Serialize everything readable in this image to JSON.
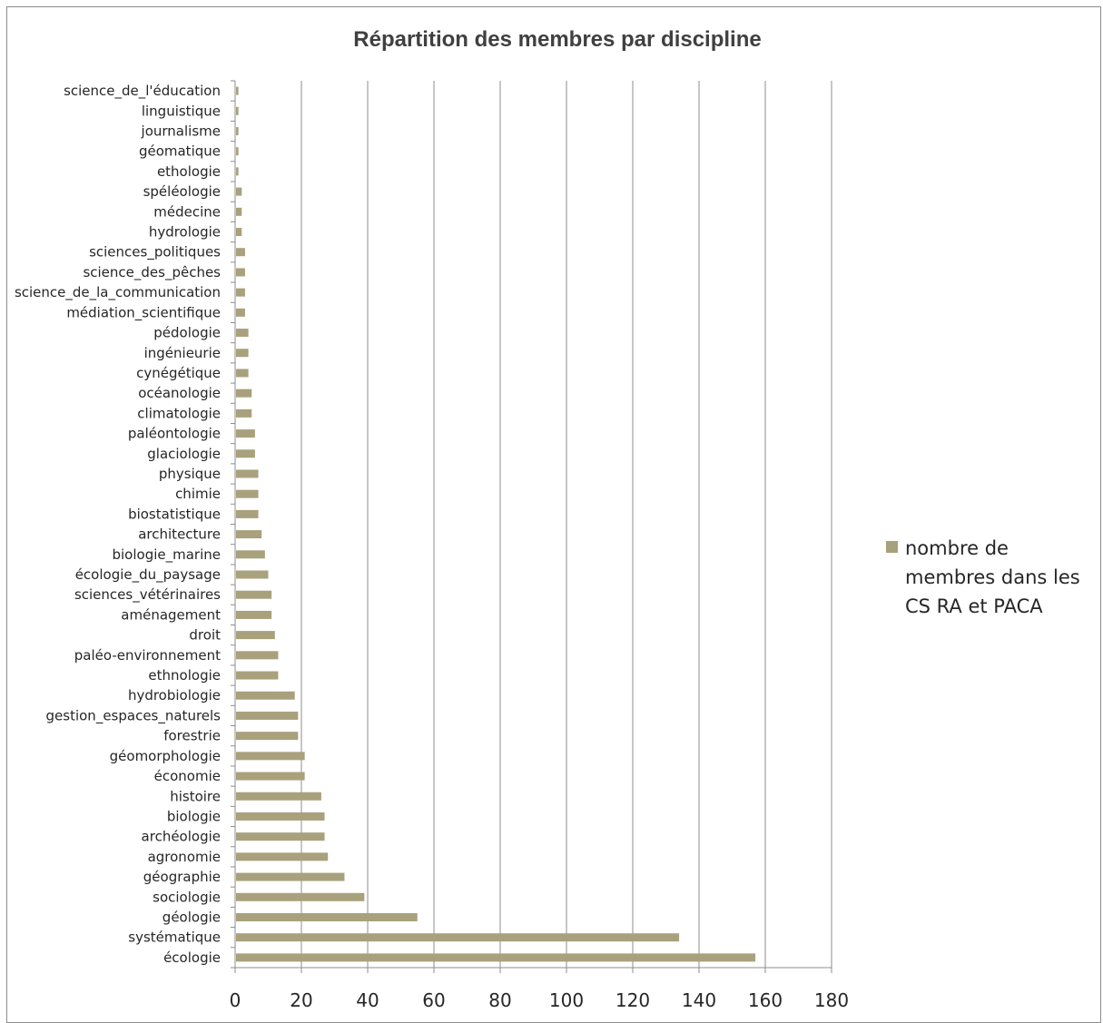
{
  "colors": {
    "bar": "#a8a17c",
    "grid": "#8c8c8c",
    "axis": "#8c8c8c"
  },
  "chart_data": {
    "type": "bar",
    "orientation": "horizontal",
    "title": "Répartition des membres par discipline",
    "xlim": [
      0,
      180
    ],
    "x_ticks": [
      0,
      20,
      40,
      60,
      80,
      100,
      120,
      140,
      160,
      180
    ],
    "grid": "vertical",
    "legend_position": "right",
    "series": [
      {
        "name": "nombre de membres dans les CS RA et PACA"
      }
    ],
    "categories": [
      "science_de_l'éducation",
      "linguistique",
      "journalisme",
      "géomatique",
      "ethologie",
      "spéléologie",
      "médecine",
      "hydrologie",
      "sciences_politiques",
      "science_des_pêches",
      "science_de_la_communication",
      "médiation_scientifique",
      "pédologie",
      "ingénieurie",
      "cynégétique",
      "océanologie",
      "climatologie",
      "paléontologie",
      "glaciologie",
      "physique",
      "chimie",
      "biostatistique",
      "architecture",
      "biologie_marine",
      "écologie_du_paysage",
      "sciences_vétérinaires",
      "aménagement",
      "droit",
      "paléo-environnement",
      "ethnologie",
      "hydrobiologie",
      "gestion_espaces_naturels",
      "forestrie",
      "géomorphologie",
      "économie",
      "histoire",
      "biologie",
      "archéologie",
      "agronomie",
      "géographie",
      "sociologie",
      "géologie",
      "systématique",
      "écologie"
    ],
    "values": [
      1,
      1,
      1,
      1,
      1,
      2,
      2,
      2,
      3,
      3,
      3,
      3,
      4,
      4,
      4,
      5,
      5,
      6,
      6,
      7,
      7,
      7,
      8,
      9,
      10,
      11,
      11,
      12,
      13,
      13,
      18,
      19,
      19,
      21,
      21,
      26,
      27,
      27,
      28,
      33,
      39,
      55,
      134,
      157
    ]
  }
}
